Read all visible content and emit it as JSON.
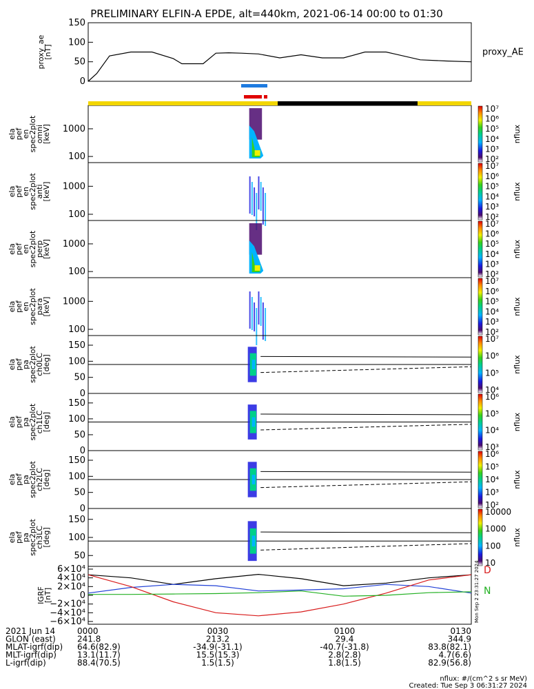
{
  "title": "PRELIMINARY ELFIN-A EPDE, alt=440km, 2021-06-14 00:00 to 01:30",
  "colors": {
    "bar_yellow": "#f2d600",
    "bar_black": "#000000",
    "bar_blue": "#1e7be0",
    "bar_red": "#e00000",
    "ae_line": "#000000",
    "igrf_black": "#000000",
    "igrf_blue": "#1f3fd6",
    "igrf_red": "#d81a1a",
    "igrf_green": "#22b022"
  },
  "chart_data": [
    {
      "type": "line",
      "panel": "proxy_ae",
      "ylabel_lines": [
        "proxy_ae",
        "[nT]"
      ],
      "yticks": [
        "150",
        "100",
        "50",
        "0"
      ],
      "ylim": [
        0,
        150
      ],
      "legend": "proxy_AE",
      "x_minutes": [
        0,
        2,
        5,
        10,
        15,
        20,
        22,
        27,
        30,
        33,
        36,
        40,
        45,
        50,
        55,
        60,
        65,
        70,
        72,
        78,
        84,
        90
      ],
      "values": [
        0,
        20,
        65,
        75,
        75,
        58,
        45,
        45,
        72,
        73,
        72,
        70,
        60,
        68,
        60,
        60,
        75,
        75,
        70,
        55,
        52,
        50
      ]
    },
    {
      "type": "heatmap",
      "panel": "spec_omni",
      "ylabel_lines": [
        "ela",
        "pef",
        "en",
        "spec2plot",
        "omni",
        "[keV]"
      ],
      "yticks": [
        "1000",
        "100"
      ],
      "ylim": [
        60,
        7000
      ],
      "colorbar": {
        "label": "nflux",
        "ticks": [
          "10^7",
          "10^6",
          "10^5",
          "10^4",
          "10^3",
          "10^2"
        ]
      }
    },
    {
      "type": "heatmap",
      "panel": "spec_anti",
      "ylabel_lines": [
        "ela",
        "pef",
        "en",
        "spec2plot",
        "anti",
        "[keV]"
      ],
      "yticks": [
        "1000",
        "100"
      ],
      "ylim": [
        60,
        7000
      ],
      "colorbar": {
        "label": "nflux",
        "ticks": [
          "10^7",
          "10^6",
          "10^5",
          "10^4",
          "10^3",
          "10^2"
        ]
      }
    },
    {
      "type": "heatmap",
      "panel": "spec_perp",
      "ylabel_lines": [
        "ela",
        "pef",
        "en",
        "spec2plot",
        "perp",
        "[keV]"
      ],
      "yticks": [
        "1000",
        "100"
      ],
      "ylim": [
        60,
        7000
      ],
      "colorbar": {
        "label": "nflux",
        "ticks": [
          "10^7",
          "10^6",
          "10^5",
          "10^4",
          "10^3",
          "10^2"
        ]
      }
    },
    {
      "type": "heatmap",
      "panel": "spec_para",
      "ylabel_lines": [
        "ela",
        "pef",
        "en",
        "spec2plot",
        "para",
        "[keV]"
      ],
      "yticks": [
        "1000",
        "100"
      ],
      "ylim": [
        60,
        7000
      ],
      "colorbar": {
        "label": "nflux",
        "ticks": [
          "10^7",
          "10^6",
          "10^5",
          "10^4",
          "10^3",
          "10^2"
        ]
      }
    },
    {
      "type": "heatmap",
      "panel": "pa_ch0LC",
      "ylabel_lines": [
        "ela",
        "pef",
        "pa",
        "spec2plot",
        "ch0LC",
        "[deg]"
      ],
      "yticks": [
        "150",
        "100",
        "50",
        "0"
      ],
      "ylim": [
        0,
        180
      ],
      "colorbar": {
        "label": "nflux",
        "ticks": [
          "10^7",
          "10^6",
          "10^5",
          "10^4"
        ]
      }
    },
    {
      "type": "heatmap",
      "panel": "pa_ch1LC",
      "ylabel_lines": [
        "ela",
        "pef",
        "pa",
        "spec2plot",
        "ch1LC",
        "[deg]"
      ],
      "yticks": [
        "150",
        "100",
        "50",
        "0"
      ],
      "ylim": [
        0,
        180
      ],
      "colorbar": {
        "label": "nflux",
        "ticks": [
          "10^6",
          "10^5",
          "10^4",
          "10^3"
        ]
      }
    },
    {
      "type": "heatmap",
      "panel": "pa_ch2LC",
      "ylabel_lines": [
        "ela",
        "pef",
        "pa",
        "spec2plot",
        "ch2LC",
        "[deg]"
      ],
      "yticks": [
        "150",
        "100",
        "50",
        "0"
      ],
      "ylim": [
        0,
        180
      ],
      "colorbar": {
        "label": "nflux",
        "ticks": [
          "10^6",
          "10^5",
          "10^4",
          "10^3",
          "10^2"
        ]
      }
    },
    {
      "type": "heatmap",
      "panel": "pa_ch3LC",
      "ylabel_lines": [
        "ela",
        "pef",
        "pa",
        "spec2plot",
        "ch3LC",
        "[deg]"
      ],
      "yticks": [
        "150",
        "100",
        "50"
      ],
      "ylim": [
        20,
        180
      ],
      "colorbar": {
        "label": "nflux",
        "ticks": [
          "10000",
          "1000",
          "100",
          "10"
        ]
      }
    },
    {
      "type": "line",
      "panel": "igrf",
      "ylabel_lines": [
        "IGRF",
        "[nT]"
      ],
      "yticks": [
        "6×10⁴",
        "4×10⁴",
        "2×10⁴",
        "0",
        "−2×10⁴",
        "−4×10⁴",
        "−6×10⁴"
      ],
      "ylim": [
        -60000,
        60000
      ],
      "legend_labels": [
        "D",
        "N"
      ],
      "x_minutes": [
        0,
        10,
        20,
        30,
        40,
        50,
        60,
        70,
        80,
        90
      ],
      "series": [
        {
          "color": "#000000",
          "values": [
            47000,
            40000,
            25000,
            38000,
            48000,
            38000,
            22000,
            28000,
            40000,
            47000
          ]
        },
        {
          "color": "#1f3fd6",
          "values": [
            5000,
            18000,
            25000,
            22000,
            10000,
            12000,
            15000,
            25000,
            20000,
            5000
          ]
        },
        {
          "color": "#d81a1a",
          "values": [
            47000,
            20000,
            -15000,
            -40000,
            -47000,
            -38000,
            -20000,
            5000,
            35000,
            47000
          ]
        },
        {
          "color": "#22b022",
          "values": [
            2000,
            2000,
            3000,
            4000,
            6000,
            10000,
            -2000,
            0,
            6000,
            8000
          ]
        }
      ]
    }
  ],
  "footer": {
    "rows": [
      {
        "label": "2021 Jun 14",
        "values": [
          "0000",
          "0030",
          "0100",
          "0130"
        ]
      },
      {
        "label": "GLON (east)",
        "values": [
          "241.8",
          "213.2",
          "29.4",
          "344.9"
        ]
      },
      {
        "label": "MLAT-igrf(dip)",
        "values": [
          "64.6(82.9)",
          "-34.9(-31.1)",
          "-40.7(-31.8)",
          "83.8(82.1)"
        ]
      },
      {
        "label": "MLT-igrf(dip)",
        "values": [
          "13.1(11.7)",
          "15.5(15.3)",
          "2.8(2.8)",
          "4.7(6.6)"
        ]
      },
      {
        "label": "L-igrf(dip)",
        "values": [
          "88.4(70.5)",
          "1.5(1.5)",
          "1.8(1.5)",
          "82.9(56.8)"
        ]
      }
    ],
    "units_note": "nflux: #/(cm^2 s sr MeV)",
    "created": "Created: Tue Sep  3 06:31:27 2024",
    "side_stamp": "Mon Sep  2 23:31:27 2024"
  }
}
